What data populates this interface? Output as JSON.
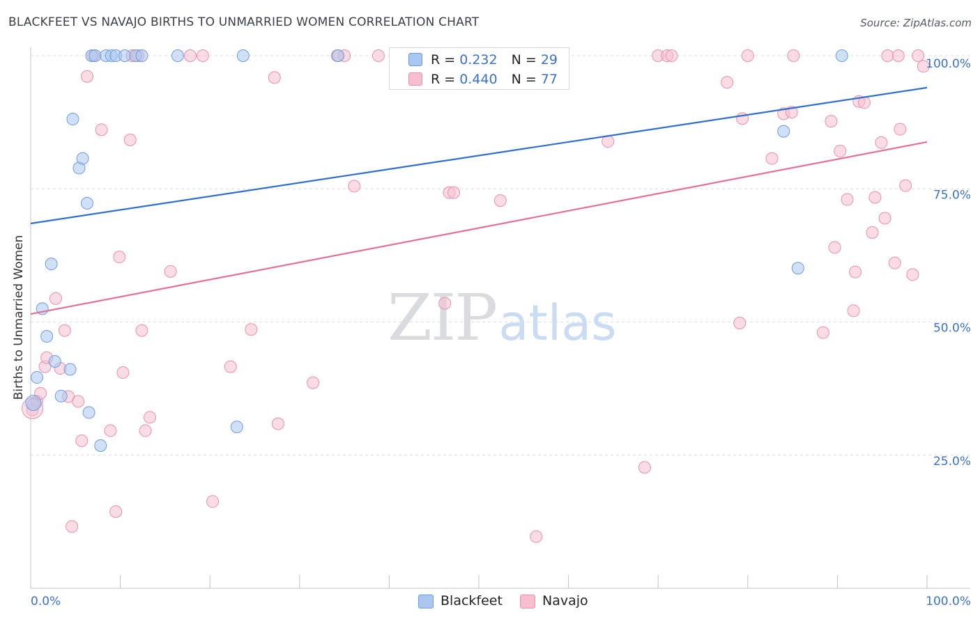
{
  "title": "BLACKFEET VS NAVAJO BIRTHS TO UNMARRIED WOMEN CORRELATION CHART",
  "source": "Source: ZipAtlas.com",
  "watermark": {
    "zip": "ZIP",
    "atlas": "atlas"
  },
  "colors": {
    "blackfeet_fill": "#a9c7ef",
    "blackfeet_stroke": "#6c9de0",
    "blackfeet_line": "#2f6fcf",
    "navajo_fill": "#f6bfd0",
    "navajo_stroke": "#ea8fae",
    "navajo_line": "#e46f97",
    "axis_label": "#3b72c8",
    "grid": "#d9dce2"
  },
  "legend_top": {
    "rows": [
      {
        "r_label": "R = ",
        "r_value": "0.232",
        "n_label": "N = ",
        "n_value": "29"
      },
      {
        "r_label": "R = ",
        "r_value": "0.440",
        "n_label": "N = ",
        "n_value": "77"
      }
    ]
  },
  "legend_bottom": {
    "items": [
      "Blackfeet",
      "Navajo"
    ]
  },
  "chart_data": {
    "type": "scatter",
    "title": "BLACKFEET VS NAVAJO BIRTHS TO UNMARRIED WOMEN CORRELATION CHART",
    "xlabel": "",
    "ylabel": "Births to Unmarried Women",
    "xlim": [
      0,
      100
    ],
    "ylim": [
      0,
      100
    ],
    "x_tick_labels": [
      "0.0%",
      "100.0%"
    ],
    "y_tick_labels": [
      "25.0%",
      "50.0%",
      "75.0%",
      "100.0%"
    ],
    "y_ticks": [
      25,
      50,
      75,
      100
    ],
    "grid": true,
    "legend_position": "top-center",
    "series": [
      {
        "name": "Blackfeet",
        "r": 0.232,
        "n": 29,
        "trend": {
          "x": [
            0,
            100
          ],
          "y": [
            68.5,
            94.0
          ]
        },
        "points": [
          [
            0.3,
            34.5
          ],
          [
            0.7,
            39.6
          ],
          [
            1.3,
            52.5
          ],
          [
            1.8,
            47.3
          ],
          [
            2.3,
            60.9
          ],
          [
            2.7,
            42.6
          ],
          [
            3.4,
            36.1
          ],
          [
            4.4,
            41.1
          ],
          [
            4.7,
            88.1
          ],
          [
            5.4,
            78.9
          ],
          [
            5.8,
            80.7
          ],
          [
            6.3,
            72.3
          ],
          [
            6.5,
            33.0
          ],
          [
            6.8,
            100.0
          ],
          [
            7.2,
            100.0
          ],
          [
            7.8,
            26.8
          ],
          [
            8.4,
            100.0
          ],
          [
            9.0,
            100.0
          ],
          [
            9.5,
            100.0
          ],
          [
            10.5,
            100.0
          ],
          [
            11.7,
            100.0
          ],
          [
            12.4,
            100.0
          ],
          [
            16.4,
            100.0
          ],
          [
            23.0,
            30.3
          ],
          [
            23.7,
            100.0
          ],
          [
            34.3,
            100.0
          ],
          [
            84.0,
            85.8
          ],
          [
            85.6,
            60.1
          ],
          [
            90.5,
            100.0
          ]
        ]
      },
      {
        "name": "Navajo",
        "r": 0.44,
        "n": 77,
        "trend": {
          "x": [
            0,
            100
          ],
          "y": [
            51.5,
            83.8
          ]
        },
        "points": [
          [
            0.2,
            33.5
          ],
          [
            0.7,
            35.1
          ],
          [
            1.1,
            36.6
          ],
          [
            1.6,
            41.6
          ],
          [
            1.8,
            43.3
          ],
          [
            2.8,
            54.4
          ],
          [
            3.3,
            41.3
          ],
          [
            3.8,
            48.4
          ],
          [
            4.2,
            36.0
          ],
          [
            4.6,
            11.6
          ],
          [
            5.3,
            35.1
          ],
          [
            5.7,
            27.7
          ],
          [
            6.3,
            96.1
          ],
          [
            7.0,
            100.0
          ],
          [
            7.9,
            86.1
          ],
          [
            8.9,
            29.6
          ],
          [
            9.5,
            14.4
          ],
          [
            9.9,
            62.2
          ],
          [
            10.3,
            40.5
          ],
          [
            11.1,
            84.2
          ],
          [
            11.3,
            100.0
          ],
          [
            12.0,
            100.0
          ],
          [
            12.4,
            48.4
          ],
          [
            12.8,
            29.6
          ],
          [
            13.3,
            32.1
          ],
          [
            15.6,
            59.5
          ],
          [
            17.8,
            100.0
          ],
          [
            19.2,
            100.0
          ],
          [
            20.3,
            16.3
          ],
          [
            22.3,
            41.6
          ],
          [
            24.6,
            48.6
          ],
          [
            27.2,
            95.9
          ],
          [
            27.6,
            30.9
          ],
          [
            31.5,
            38.6
          ],
          [
            34.2,
            100.0
          ],
          [
            35.0,
            100.0
          ],
          [
            36.1,
            75.5
          ],
          [
            38.8,
            100.0
          ],
          [
            46.2,
            53.5
          ],
          [
            46.7,
            74.3
          ],
          [
            47.2,
            74.3
          ],
          [
            52.4,
            72.8
          ],
          [
            56.4,
            9.7
          ],
          [
            64.4,
            83.9
          ],
          [
            68.5,
            22.7
          ],
          [
            70.0,
            100.0
          ],
          [
            71.0,
            100.0
          ],
          [
            71.5,
            100.0
          ],
          [
            77.7,
            95.0
          ],
          [
            79.1,
            49.8
          ],
          [
            79.4,
            88.2
          ],
          [
            80.0,
            100.0
          ],
          [
            82.7,
            80.7
          ],
          [
            84.0,
            89.1
          ],
          [
            84.9,
            89.4
          ],
          [
            85.1,
            100.0
          ],
          [
            88.4,
            48.0
          ],
          [
            89.3,
            87.7
          ],
          [
            89.7,
            64.0
          ],
          [
            90.3,
            82.1
          ],
          [
            91.1,
            73.0
          ],
          [
            91.8,
            52.1
          ],
          [
            92.0,
            59.4
          ],
          [
            92.4,
            91.4
          ],
          [
            93.0,
            91.2
          ],
          [
            93.9,
            66.8
          ],
          [
            94.2,
            73.4
          ],
          [
            94.9,
            83.7
          ],
          [
            95.3,
            69.5
          ],
          [
            95.6,
            100.0
          ],
          [
            96.4,
            61.1
          ],
          [
            96.8,
            100.0
          ],
          [
            97.0,
            86.2
          ],
          [
            97.6,
            75.6
          ],
          [
            98.4,
            58.9
          ],
          [
            99.0,
            100.0
          ],
          [
            99.6,
            98.0
          ]
        ]
      }
    ]
  }
}
